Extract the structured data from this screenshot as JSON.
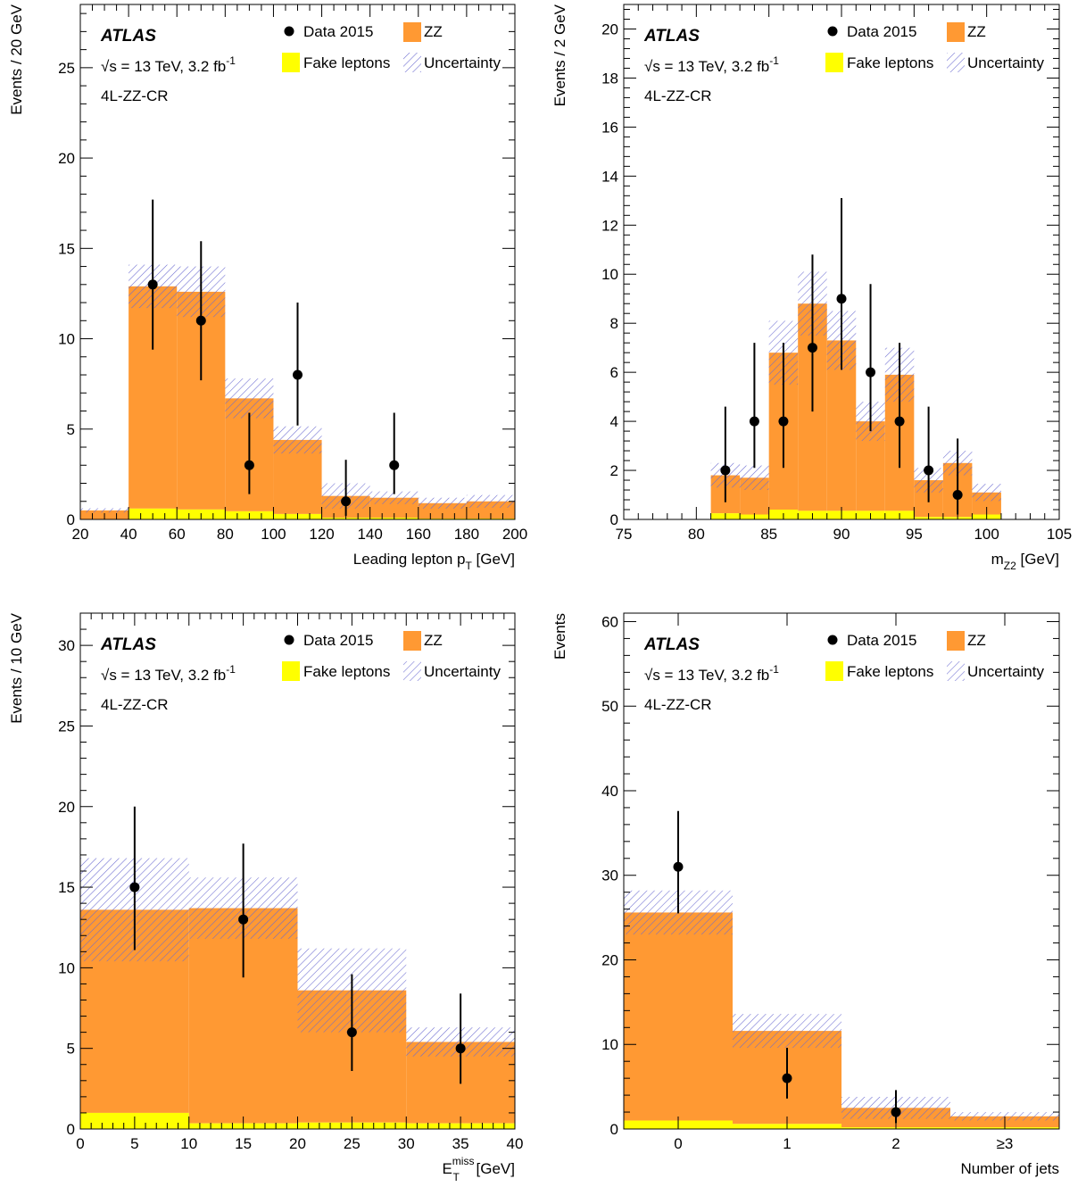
{
  "colors": {
    "zz": "#ff9933",
    "fake": "#ffff00",
    "uncertainty": "#6a6ad0",
    "data": "#000000",
    "frame": "#000000"
  },
  "legend": {
    "data_label": "Data 2015",
    "zz_label": "ZZ",
    "fake_label": "Fake leptons",
    "unc_label": "Uncertainty"
  },
  "chart_data": [
    {
      "type": "bar",
      "name": "lead-pt",
      "atlas": "ATLAS",
      "energy": "√s = 13 TeV, 3.2 fb",
      "energy_sup": "-1",
      "region": "4L-ZZ-CR",
      "xlabel": "Leading lepton p",
      "xlabel_sub": "T",
      "xlabel_tail": " [GeV]",
      "ylabel": "Events / 20 GeV",
      "xlim": [
        20,
        200
      ],
      "ylim": [
        0,
        28.5
      ],
      "yticks": [
        0,
        5,
        10,
        15,
        20,
        25
      ],
      "xticks": [
        20,
        40,
        60,
        80,
        100,
        120,
        140,
        160,
        180,
        200
      ],
      "ytick_labels": [
        "0",
        "5",
        "10",
        "15",
        "20",
        "25"
      ],
      "xtick_labels": [
        "20",
        "40",
        "60",
        "80",
        "100",
        "120",
        "140",
        "160",
        "180",
        "200"
      ],
      "bins": [
        {
          "lo": 20,
          "hi": 40,
          "fake": 0,
          "total": 0.5,
          "unc": 0.12
        },
        {
          "lo": 40,
          "hi": 60,
          "fake": 0.6,
          "total": 12.9,
          "unc": 1.2
        },
        {
          "lo": 60,
          "hi": 80,
          "fake": 0.55,
          "total": 12.6,
          "unc": 1.4
        },
        {
          "lo": 80,
          "hi": 100,
          "fake": 0.45,
          "total": 6.7,
          "unc": 1.1
        },
        {
          "lo": 100,
          "hi": 120,
          "fake": 0.3,
          "total": 4.4,
          "unc": 0.75
        },
        {
          "lo": 120,
          "hi": 140,
          "fake": 0.1,
          "total": 1.3,
          "unc": 0.7
        },
        {
          "lo": 140,
          "hi": 160,
          "fake": 0.1,
          "total": 1.2,
          "unc": 0.35
        },
        {
          "lo": 160,
          "hi": 180,
          "fake": 0.05,
          "total": 0.9,
          "unc": 0.3
        },
        {
          "lo": 180,
          "hi": 200,
          "fake": 0.05,
          "total": 1.0,
          "unc": 0.35
        }
      ],
      "points": [
        {
          "x": 50,
          "y": 13,
          "lo": 3.6,
          "hi": 4.7
        },
        {
          "x": 70,
          "y": 11,
          "lo": 3.3,
          "hi": 4.4
        },
        {
          "x": 90,
          "y": 3,
          "lo": 1.6,
          "hi": 2.9
        },
        {
          "x": 110,
          "y": 8,
          "lo": 2.8,
          "hi": 4.0
        },
        {
          "x": 130,
          "y": 1,
          "lo": 0.8,
          "hi": 2.3
        },
        {
          "x": 150,
          "y": 3,
          "lo": 1.6,
          "hi": 2.9
        }
      ]
    },
    {
      "type": "bar",
      "name": "mz2",
      "atlas": "ATLAS",
      "energy": "√s = 13 TeV, 3.2 fb",
      "energy_sup": "-1",
      "region": "4L-ZZ-CR",
      "xlabel": "m",
      "xlabel_sub": "Z2",
      "xlabel_tail": " [GeV]",
      "ylabel": "Events / 2 GeV",
      "xlim": [
        75,
        105
      ],
      "ylim": [
        0,
        21
      ],
      "yticks": [
        0,
        2,
        4,
        6,
        8,
        10,
        12,
        14,
        16,
        18,
        20
      ],
      "xticks": [
        75,
        80,
        85,
        90,
        95,
        100,
        105
      ],
      "ytick_labels": [
        "0",
        "2",
        "4",
        "6",
        "8",
        "10",
        "12",
        "14",
        "16",
        "18",
        "20"
      ],
      "xtick_labels": [
        "75",
        "80",
        "85",
        "90",
        "95",
        "100",
        "105"
      ],
      "bins": [
        {
          "lo": 81,
          "hi": 83,
          "fake": 0.25,
          "total": 1.8,
          "unc": 0.5
        },
        {
          "lo": 83,
          "hi": 85,
          "fake": 0.2,
          "total": 1.7,
          "unc": 0.5
        },
        {
          "lo": 85,
          "hi": 87,
          "fake": 0.4,
          "total": 6.8,
          "unc": 1.3
        },
        {
          "lo": 87,
          "hi": 89,
          "fake": 0.35,
          "total": 8.8,
          "unc": 1.3
        },
        {
          "lo": 89,
          "hi": 91,
          "fake": 0.35,
          "total": 7.3,
          "unc": 1.2
        },
        {
          "lo": 91,
          "hi": 93,
          "fake": 0.35,
          "total": 4.0,
          "unc": 0.8
        },
        {
          "lo": 93,
          "hi": 95,
          "fake": 0.35,
          "total": 5.9,
          "unc": 1.1
        },
        {
          "lo": 95,
          "hi": 97,
          "fake": 0.1,
          "total": 1.6,
          "unc": 0.5
        },
        {
          "lo": 97,
          "hi": 99,
          "fake": 0.1,
          "total": 2.3,
          "unc": 0.5
        },
        {
          "lo": 99,
          "hi": 101,
          "fake": 0.2,
          "total": 1.1,
          "unc": 0.35
        }
      ],
      "points": [
        {
          "x": 82,
          "y": 2,
          "lo": 1.3,
          "hi": 2.6
        },
        {
          "x": 84,
          "y": 4,
          "lo": 1.9,
          "hi": 3.2
        },
        {
          "x": 86,
          "y": 4,
          "lo": 1.9,
          "hi": 3.2
        },
        {
          "x": 88,
          "y": 7,
          "lo": 2.6,
          "hi": 3.8
        },
        {
          "x": 90,
          "y": 9,
          "lo": 2.9,
          "hi": 4.1
        },
        {
          "x": 92,
          "y": 6,
          "lo": 2.4,
          "hi": 3.6
        },
        {
          "x": 94,
          "y": 4,
          "lo": 1.9,
          "hi": 3.2
        },
        {
          "x": 96,
          "y": 2,
          "lo": 1.3,
          "hi": 2.6
        },
        {
          "x": 98,
          "y": 1,
          "lo": 0.8,
          "hi": 2.3
        }
      ]
    },
    {
      "type": "bar",
      "name": "met",
      "atlas": "ATLAS",
      "energy": "√s = 13 TeV, 3.2 fb",
      "energy_sup": "-1",
      "region": "4L-ZZ-CR",
      "xlabel": "E",
      "xlabel_sub": "T",
      "xlabel_sup": "miss",
      "xlabel_tail": " [GeV]",
      "ylabel": "Events / 10 GeV",
      "xlim": [
        0,
        40
      ],
      "ylim": [
        0,
        32
      ],
      "yticks": [
        0,
        5,
        10,
        15,
        20,
        25,
        30
      ],
      "xticks": [
        0,
        5,
        10,
        15,
        20,
        25,
        30,
        35,
        40
      ],
      "ytick_labels": [
        "0",
        "5",
        "10",
        "15",
        "20",
        "25",
        "30"
      ],
      "xtick_labels": [
        "0",
        "5",
        "10",
        "15",
        "20",
        "25",
        "30",
        "35",
        "40"
      ],
      "bins": [
        {
          "lo": 0,
          "hi": 10,
          "fake": 1.0,
          "total": 13.6,
          "unc": 3.2
        },
        {
          "lo": 10,
          "hi": 20,
          "fake": 0.35,
          "total": 13.7,
          "unc": 1.9
        },
        {
          "lo": 20,
          "hi": 30,
          "fake": 0.4,
          "total": 8.6,
          "unc": 2.6
        },
        {
          "lo": 30,
          "hi": 40,
          "fake": 0.35,
          "total": 5.4,
          "unc": 0.9
        }
      ],
      "points": [
        {
          "x": 5,
          "y": 15,
          "lo": 3.9,
          "hi": 5.0
        },
        {
          "x": 15,
          "y": 13,
          "lo": 3.6,
          "hi": 4.7
        },
        {
          "x": 25,
          "y": 6,
          "lo": 2.4,
          "hi": 3.6
        },
        {
          "x": 35,
          "y": 5,
          "lo": 2.2,
          "hi": 3.4
        }
      ]
    },
    {
      "type": "bar",
      "name": "njets",
      "atlas": "ATLAS",
      "energy": "√s = 13 TeV, 3.2 fb",
      "energy_sup": "-1",
      "region": "4L-ZZ-CR",
      "xlabel": "Number of jets",
      "xlabel_sub": "",
      "xlabel_tail": "",
      "ylabel": "Events",
      "xlim": [
        -0.5,
        3.5
      ],
      "ylim": [
        0,
        61
      ],
      "yticks": [
        0,
        10,
        20,
        30,
        40,
        50,
        60
      ],
      "xticks": [
        0,
        1,
        2,
        3
      ],
      "ytick_labels": [
        "0",
        "10",
        "20",
        "30",
        "40",
        "50",
        "60"
      ],
      "xtick_labels": [
        "0",
        "1",
        "2",
        "≥3"
      ],
      "categorical": true,
      "bins": [
        {
          "lo": -0.5,
          "hi": 0.5,
          "fake": 1.0,
          "total": 25.6,
          "unc": 2.6
        },
        {
          "lo": 0.5,
          "hi": 1.5,
          "fake": 0.6,
          "total": 11.6,
          "unc": 2.0
        },
        {
          "lo": 1.5,
          "hi": 2.5,
          "fake": 0.2,
          "total": 2.5,
          "unc": 1.3
        },
        {
          "lo": 2.5,
          "hi": 3.5,
          "fake": 0.2,
          "total": 1.5,
          "unc": 0.5
        }
      ],
      "points": [
        {
          "x": 0,
          "y": 31,
          "lo": 5.5,
          "hi": 6.6
        },
        {
          "x": 1,
          "y": 6,
          "lo": 2.4,
          "hi": 3.6
        },
        {
          "x": 2,
          "y": 2,
          "lo": 1.3,
          "hi": 2.6
        }
      ]
    }
  ]
}
